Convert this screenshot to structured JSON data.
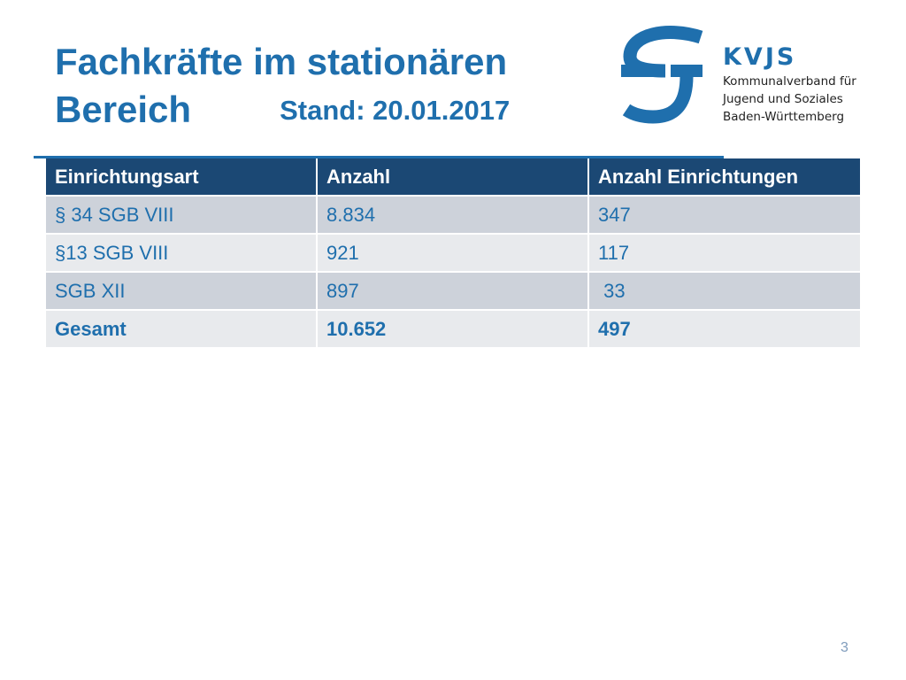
{
  "title": {
    "line1": "Fachkräfte im stationären",
    "line2": "Bereich",
    "stand": "Stand: 20.01.2017"
  },
  "logo": {
    "brand": "KVJS",
    "lines": [
      "Kommunalverband für",
      "Jugend und Soziales",
      "Baden-Württemberg"
    ],
    "color": "#1f6fad"
  },
  "table": {
    "headers": [
      "Einrichtungsart",
      "Anzahl",
      "Anzahl Einrichtungen"
    ],
    "rows": [
      [
        "§ 34 SGB VIII",
        "8.834",
        "347"
      ],
      [
        "§13 SGB VIII",
        "921",
        "117"
      ],
      [
        "SGB XII",
        "897",
        " 33"
      ]
    ],
    "total": [
      "Gesamt",
      "10.652",
      "497"
    ]
  },
  "page_number": "3",
  "colors": {
    "title": "#1f6fad",
    "header_bg": "#1b4874",
    "row_dark": "#cdd2da",
    "row_light": "#e8eaed"
  }
}
